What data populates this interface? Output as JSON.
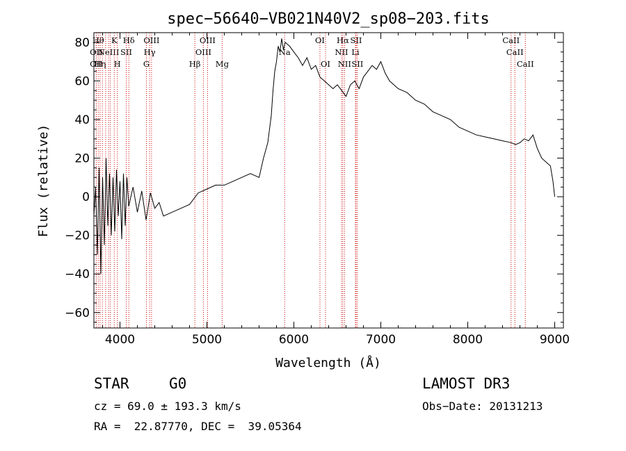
{
  "chart_data": {
    "type": "line",
    "title": "spec−56640−VB021N40V2_sp08−203.fits",
    "xlabel": "Wavelength (Å)",
    "ylabel": "Flux (relative)",
    "xlim": [
      3700,
      9100
    ],
    "ylim": [
      -68,
      85
    ],
    "xticks": [
      4000,
      5000,
      6000,
      7000,
      8000,
      9000
    ],
    "yticks": [
      -60,
      -40,
      -20,
      0,
      20,
      40,
      60,
      80
    ],
    "tick_labels_x": [
      "4000",
      "5000",
      "6000",
      "7000",
      "8000",
      "9000"
    ],
    "tick_labels_y": [
      "−60",
      "−40",
      "−20",
      "0",
      "20",
      "40",
      "60",
      "80"
    ],
    "series": [
      {
        "name": "flux",
        "x": [
          3700,
          3720,
          3740,
          3760,
          3780,
          3800,
          3820,
          3840,
          3860,
          3880,
          3900,
          3920,
          3940,
          3960,
          3980,
          4000,
          4020,
          4040,
          4060,
          4080,
          4100,
          4150,
          4200,
          4250,
          4300,
          4350,
          4400,
          4450,
          4500,
          4600,
          4700,
          4800,
          4900,
          5000,
          5100,
          5200,
          5300,
          5400,
          5500,
          5600,
          5650,
          5700,
          5720,
          5740,
          5760,
          5780,
          5800,
          5820,
          5840,
          5860,
          5880,
          5900,
          5950,
          6000,
          6050,
          6100,
          6150,
          6200,
          6250,
          6300,
          6350,
          6400,
          6450,
          6500,
          6550,
          6600,
          6650,
          6700,
          6750,
          6800,
          6850,
          6900,
          6950,
          7000,
          7050,
          7100,
          7200,
          7300,
          7400,
          7500,
          7600,
          7700,
          7800,
          7900,
          8000,
          8100,
          8200,
          8300,
          8400,
          8500,
          8550,
          8600,
          8650,
          8700,
          8750,
          8800,
          8850,
          8900,
          8950,
          8980,
          9000
        ],
        "y": [
          -10,
          5,
          -30,
          15,
          -40,
          10,
          -25,
          20,
          -15,
          12,
          -20,
          10,
          -18,
          14,
          -10,
          8,
          -22,
          12,
          -15,
          10,
          -5,
          5,
          -8,
          3,
          -12,
          2,
          -6,
          -3,
          -10,
          -8,
          -6,
          -4,
          2,
          4,
          6,
          6,
          8,
          10,
          12,
          10,
          20,
          28,
          35,
          42,
          55,
          65,
          70,
          78,
          75,
          82,
          76,
          80,
          78,
          75,
          72,
          68,
          72,
          66,
          68,
          62,
          60,
          58,
          56,
          58,
          55,
          52,
          58,
          60,
          56,
          62,
          65,
          68,
          66,
          70,
          64,
          60,
          56,
          54,
          50,
          48,
          44,
          42,
          40,
          36,
          34,
          32,
          31,
          30,
          29,
          28,
          27,
          28,
          30,
          29,
          32,
          25,
          20,
          18,
          16,
          8,
          0
        ]
      }
    ],
    "line_markers": [
      {
        "w": 3750,
        "row": 1,
        "label": "Hθ"
      },
      {
        "w": 3727,
        "row": 2,
        "label": "OII"
      },
      {
        "w": 3727,
        "row": 3,
        "label": "OII"
      },
      {
        "w": 3771,
        "row": 3,
        "label": "Hη"
      },
      {
        "w": 3798,
        "row": 1,
        "label": ""
      },
      {
        "w": 3835,
        "row": 1,
        "label": ""
      },
      {
        "w": 3869,
        "row": 2,
        "label": "NeIII"
      },
      {
        "w": 3889,
        "row": 1,
        "label": ""
      },
      {
        "w": 3934,
        "row": 1,
        "label": "K"
      },
      {
        "w": 3969,
        "row": 3,
        "label": "H"
      },
      {
        "w": 4072,
        "row": 2,
        "label": "SII"
      },
      {
        "w": 4102,
        "row": 1,
        "label": "Hδ"
      },
      {
        "w": 4304,
        "row": 3,
        "label": "G"
      },
      {
        "w": 4341,
        "row": 2,
        "label": "Hγ"
      },
      {
        "w": 4363,
        "row": 1,
        "label": "OIII"
      },
      {
        "w": 4861,
        "row": 3,
        "label": "Hβ"
      },
      {
        "w": 4959,
        "row": 2,
        "label": "OIII"
      },
      {
        "w": 5007,
        "row": 1,
        "label": "OIII"
      },
      {
        "w": 5175,
        "row": 3,
        "label": "Mg"
      },
      {
        "w": 5894,
        "row": 2,
        "label": "Na"
      },
      {
        "w": 6300,
        "row": 1,
        "label": "OI"
      },
      {
        "w": 6364,
        "row": 3,
        "label": "OI"
      },
      {
        "w": 6548,
        "row": 2,
        "label": "NII"
      },
      {
        "w": 6563,
        "row": 1,
        "label": "Hα"
      },
      {
        "w": 6583,
        "row": 3,
        "label": "NII"
      },
      {
        "w": 6708,
        "row": 2,
        "label": "Li"
      },
      {
        "w": 6716,
        "row": 1,
        "label": "SII"
      },
      {
        "w": 6731,
        "row": 3,
        "label": "SII"
      },
      {
        "w": 8498,
        "row": 1,
        "label": "CaII"
      },
      {
        "w": 8542,
        "row": 2,
        "label": "CaII"
      },
      {
        "w": 8662,
        "row": 3,
        "label": "CaII"
      }
    ]
  },
  "info": {
    "object_class": "STAR",
    "subclass": "G0",
    "survey": "LAMOST DR3",
    "cz_line": "cz = 69.0 ± 193.3 km/s",
    "obs_date_line": "Obs−Date: 20131213",
    "radec_line": "RA =  22.87770, DEC =  39.05364"
  }
}
